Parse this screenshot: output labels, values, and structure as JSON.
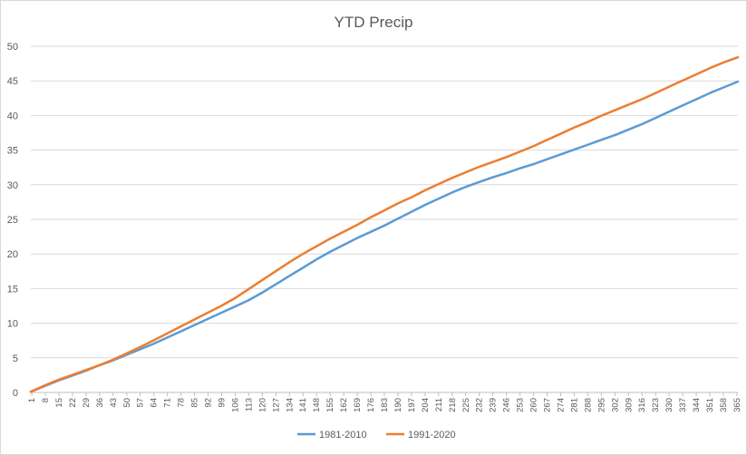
{
  "chart_data": {
    "type": "line",
    "title": "YTD Precip",
    "xlabel": "",
    "ylabel": "",
    "xlim": [
      1,
      365
    ],
    "ylim": [
      0,
      50
    ],
    "y_ticks": [
      0,
      5,
      10,
      15,
      20,
      25,
      30,
      35,
      40,
      45,
      50
    ],
    "x_tick_labels": [
      1,
      8,
      15,
      22,
      29,
      36,
      43,
      50,
      57,
      64,
      71,
      78,
      85,
      92,
      99,
      106,
      113,
      120,
      127,
      134,
      141,
      148,
      155,
      162,
      169,
      176,
      183,
      190,
      197,
      204,
      211,
      218,
      225,
      232,
      239,
      246,
      253,
      260,
      267,
      274,
      281,
      288,
      295,
      302,
      309,
      316,
      323,
      330,
      337,
      344,
      351,
      358,
      365
    ],
    "grid": true,
    "legend": "bottom",
    "series": [
      {
        "name": "1981-2010",
        "color": "#5B9BD5",
        "x": [
          1,
          8,
          15,
          22,
          29,
          36,
          43,
          50,
          57,
          64,
          71,
          78,
          85,
          92,
          99,
          106,
          113,
          120,
          127,
          134,
          141,
          148,
          155,
          162,
          169,
          176,
          183,
          190,
          197,
          204,
          211,
          218,
          225,
          232,
          239,
          246,
          253,
          260,
          267,
          274,
          281,
          288,
          295,
          302,
          309,
          316,
          323,
          330,
          337,
          344,
          351,
          358,
          365
        ],
        "values": [
          0.1,
          0.9,
          1.7,
          2.4,
          3.1,
          3.9,
          4.6,
          5.4,
          6.2,
          7.0,
          7.9,
          8.8,
          9.7,
          10.6,
          11.5,
          12.4,
          13.3,
          14.4,
          15.6,
          16.8,
          18.0,
          19.2,
          20.3,
          21.3,
          22.3,
          23.2,
          24.1,
          25.1,
          26.1,
          27.1,
          28.0,
          28.9,
          29.7,
          30.4,
          31.1,
          31.7,
          32.4,
          33.0,
          33.7,
          34.4,
          35.1,
          35.8,
          36.5,
          37.2,
          38.0,
          38.8,
          39.7,
          40.6,
          41.5,
          42.4,
          43.3,
          44.1,
          44.9
        ]
      },
      {
        "name": "1991-2020",
        "color": "#ED7D31",
        "x": [
          1,
          8,
          15,
          22,
          29,
          36,
          43,
          50,
          57,
          64,
          71,
          78,
          85,
          92,
          99,
          106,
          113,
          120,
          127,
          134,
          141,
          148,
          155,
          162,
          169,
          176,
          183,
          190,
          197,
          204,
          211,
          218,
          225,
          232,
          239,
          246,
          253,
          260,
          267,
          274,
          281,
          288,
          295,
          302,
          309,
          316,
          323,
          330,
          337,
          344,
          351,
          358,
          365
        ],
        "values": [
          0.1,
          1.0,
          1.8,
          2.5,
          3.2,
          3.9,
          4.7,
          5.6,
          6.5,
          7.5,
          8.5,
          9.5,
          10.5,
          11.5,
          12.5,
          13.6,
          14.9,
          16.2,
          17.5,
          18.8,
          20.0,
          21.1,
          22.2,
          23.2,
          24.2,
          25.3,
          26.3,
          27.3,
          28.2,
          29.2,
          30.1,
          31.0,
          31.8,
          32.6,
          33.3,
          34.0,
          34.8,
          35.6,
          36.5,
          37.4,
          38.3,
          39.1,
          40.0,
          40.8,
          41.6,
          42.4,
          43.3,
          44.2,
          45.1,
          46.0,
          46.9,
          47.7,
          48.4
        ]
      }
    ]
  }
}
